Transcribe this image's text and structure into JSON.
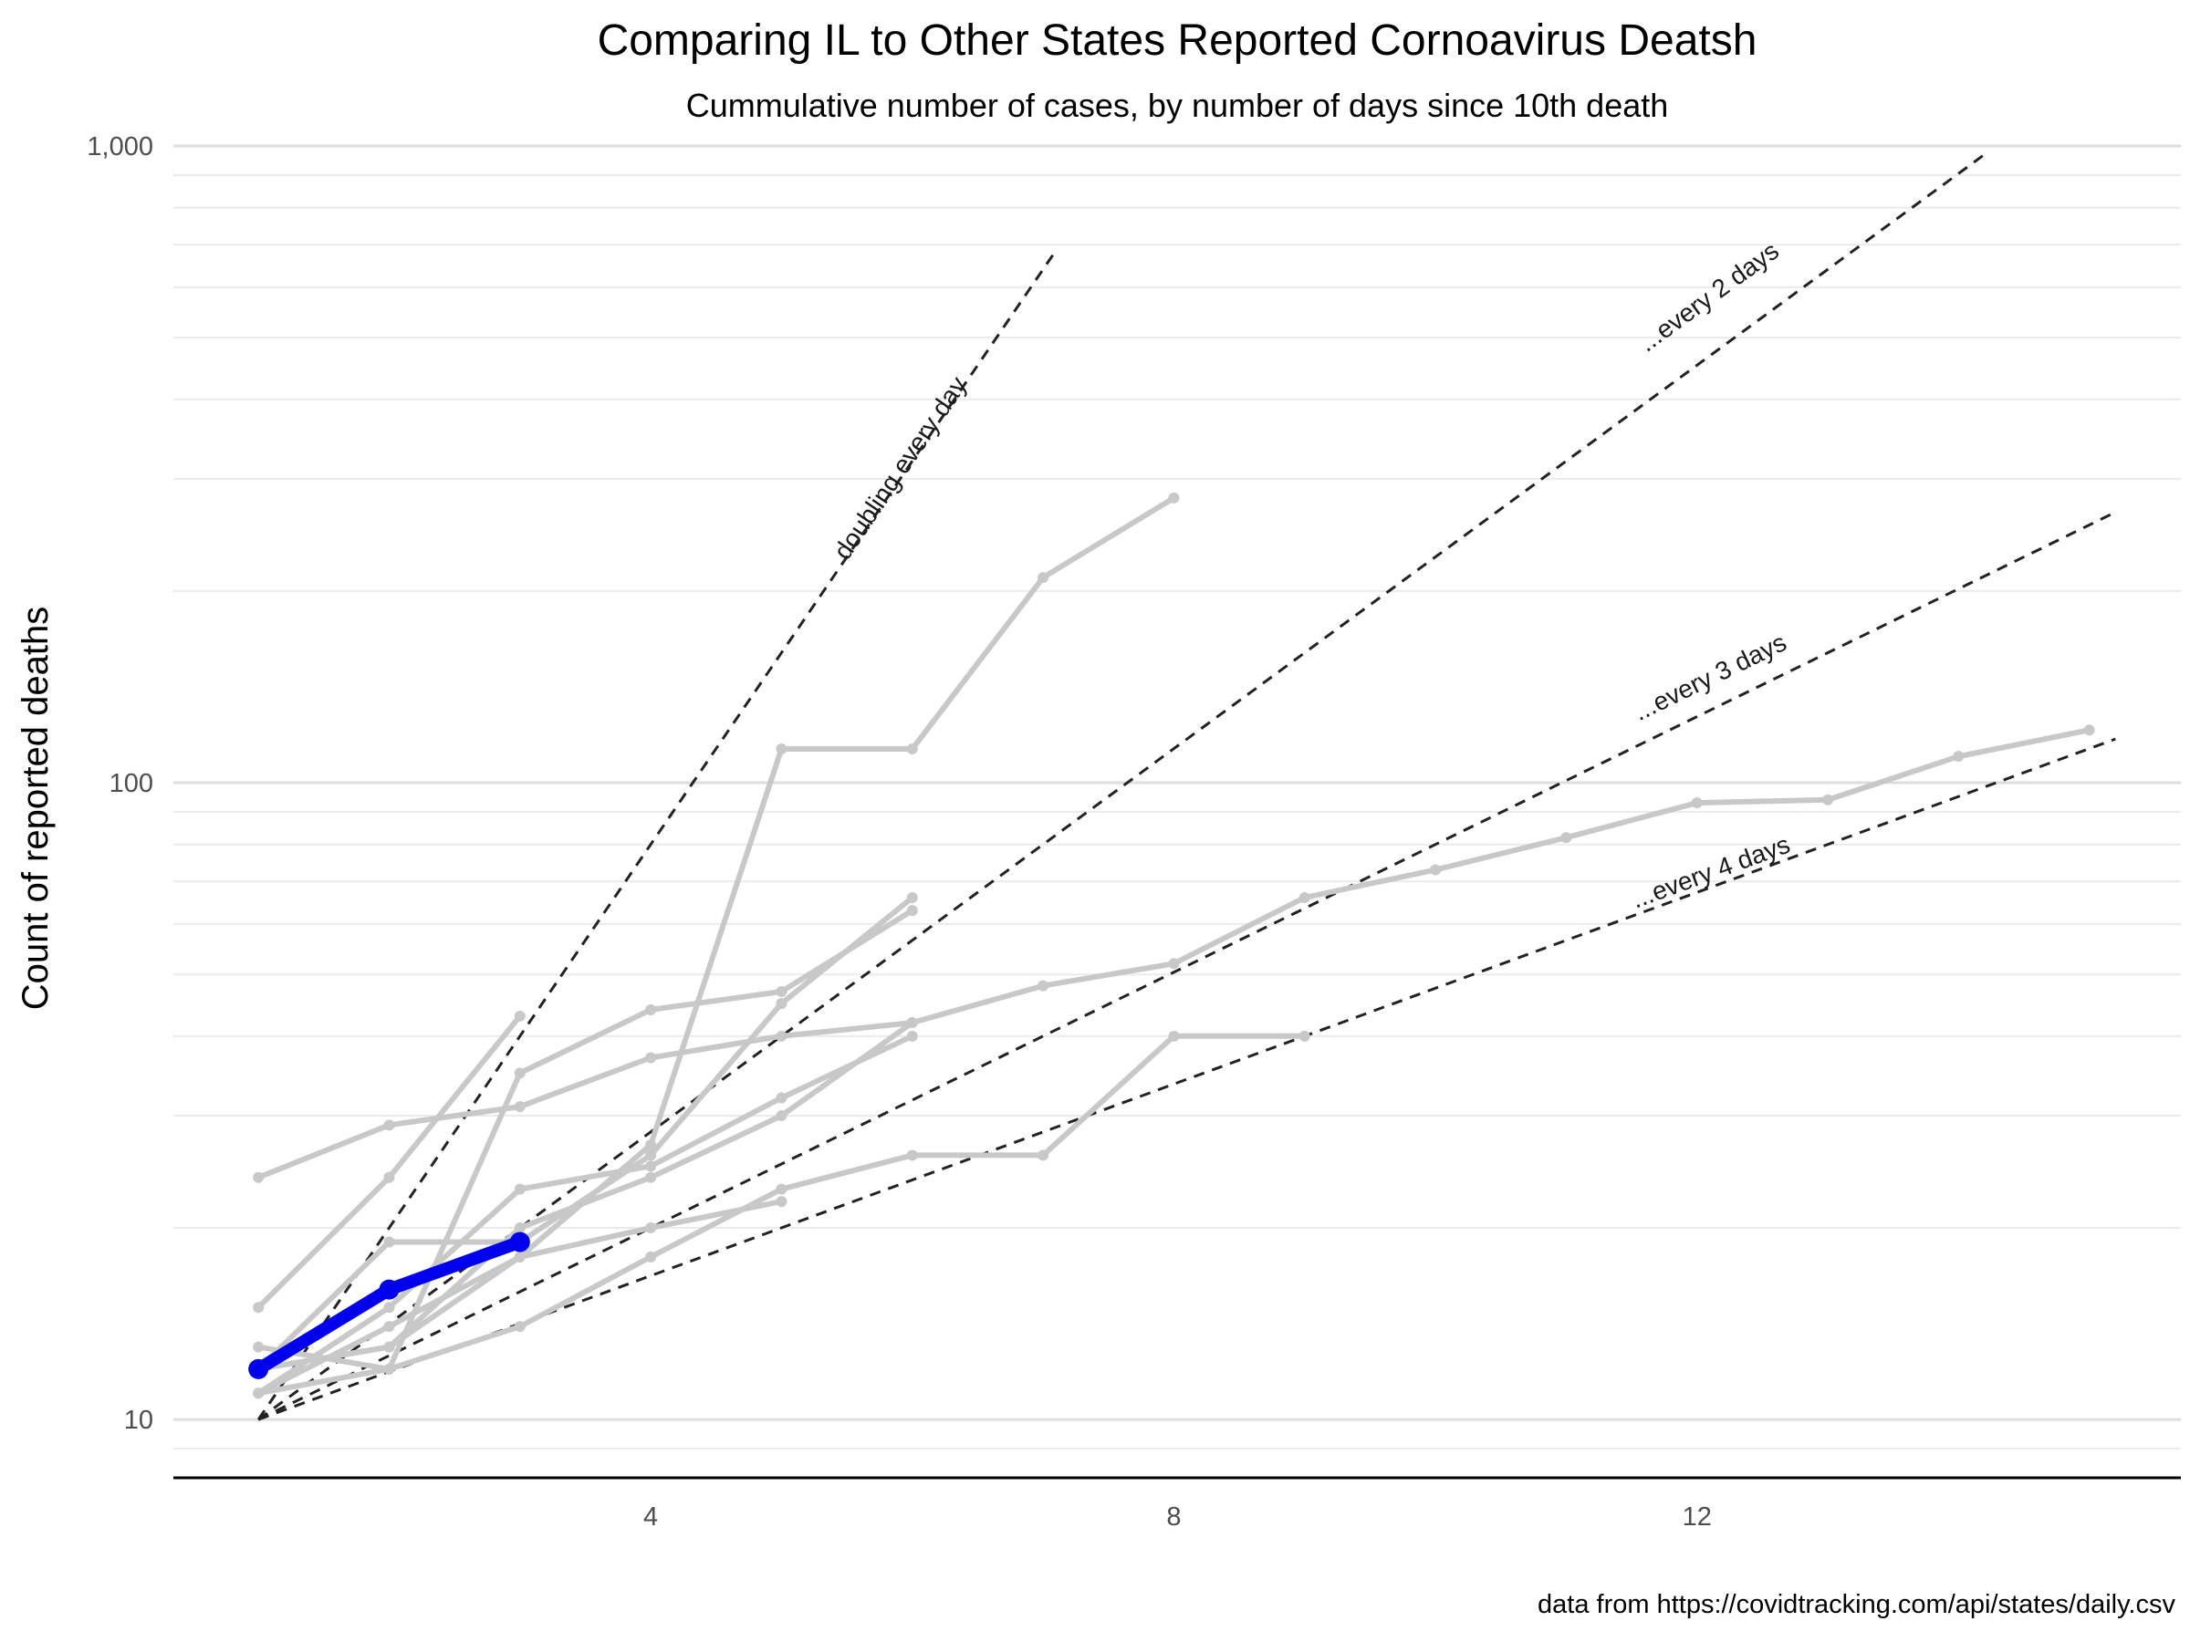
{
  "chart_data": {
    "type": "line",
    "title": "Comparing IL to Other States Reported Cornoavirus Deatsh",
    "subtitle": "Cummulative number of cases, by number of days since 10th death",
    "xlabel": "",
    "ylabel": "Count of reported deaths",
    "caption": "data from https://covidtracking.com/api/states/daily.csv",
    "x_scale": "linear",
    "y_scale": "log10",
    "xlim": [
      0.35,
      15.7
    ],
    "ylim": [
      8.1,
      1000
    ],
    "x_ticks": [
      4,
      8,
      12
    ],
    "x_tick_labels": [
      "4",
      "8",
      "12"
    ],
    "y_ticks": [
      10,
      100,
      1000
    ],
    "y_tick_labels": [
      "10",
      "100",
      "1,000"
    ],
    "grid": true,
    "legend": "none",
    "colors": {
      "highlight": "#0000ee",
      "other_states": "#c8c8c8",
      "reference": "#222222"
    },
    "highlight_series": {
      "name": "IL",
      "x": [
        1,
        2,
        3
      ],
      "y": [
        12,
        16,
        19
      ]
    },
    "series": [
      {
        "x": [
          1,
          2,
          3,
          4,
          5,
          6,
          7,
          8
        ],
        "y": [
          11,
          14,
          18,
          27,
          113,
          113,
          210,
          280
        ]
      },
      {
        "x": [
          1,
          2,
          3,
          4,
          5,
          6,
          7,
          8,
          9,
          10,
          11,
          12,
          13,
          14,
          15
        ],
        "y": [
          12,
          13,
          20,
          24,
          30,
          42,
          48,
          52,
          66,
          73,
          82,
          93,
          94,
          110,
          121
        ]
      },
      {
        "x": [
          1,
          2,
          3,
          4,
          5,
          6,
          7,
          8,
          9
        ],
        "y": [
          11,
          12,
          14,
          18,
          23,
          26,
          26,
          40,
          40
        ]
      },
      {
        "x": [
          1,
          2,
          3,
          4,
          5,
          6
        ],
        "y": [
          24,
          29,
          31,
          37,
          40,
          42
        ]
      },
      {
        "x": [
          1,
          2,
          3
        ],
        "y": [
          15,
          24,
          43
        ]
      },
      {
        "x": [
          1,
          2,
          3,
          4,
          5,
          6
        ],
        "y": [
          13,
          12,
          35,
          44,
          47,
          63
        ]
      },
      {
        "x": [
          1,
          2,
          3,
          4,
          5,
          6
        ],
        "y": [
          11,
          15,
          23,
          25,
          32,
          40
        ]
      },
      {
        "x": [
          1,
          2,
          3,
          4,
          5,
          6
        ],
        "y": [
          12,
          19,
          19,
          26,
          45,
          66
        ]
      },
      {
        "x": [
          1,
          2,
          3,
          4,
          5
        ],
        "y": [
          12,
          13,
          18,
          20,
          22
        ]
      }
    ],
    "reference_lines": [
      {
        "label": "doubling every day",
        "doubling_days": 1,
        "x_start": 1,
        "x_end": 7.1
      },
      {
        "label": "...every 2 days",
        "doubling_days": 2,
        "x_start": 1,
        "x_end": 14.2
      },
      {
        "label": "...every 3 days",
        "doubling_days": 3,
        "x_start": 1,
        "x_end": 15.2
      },
      {
        "label": "...every 4 days",
        "doubling_days": 4,
        "x_start": 1,
        "x_end": 15.2
      }
    ],
    "start_value": 10
  }
}
